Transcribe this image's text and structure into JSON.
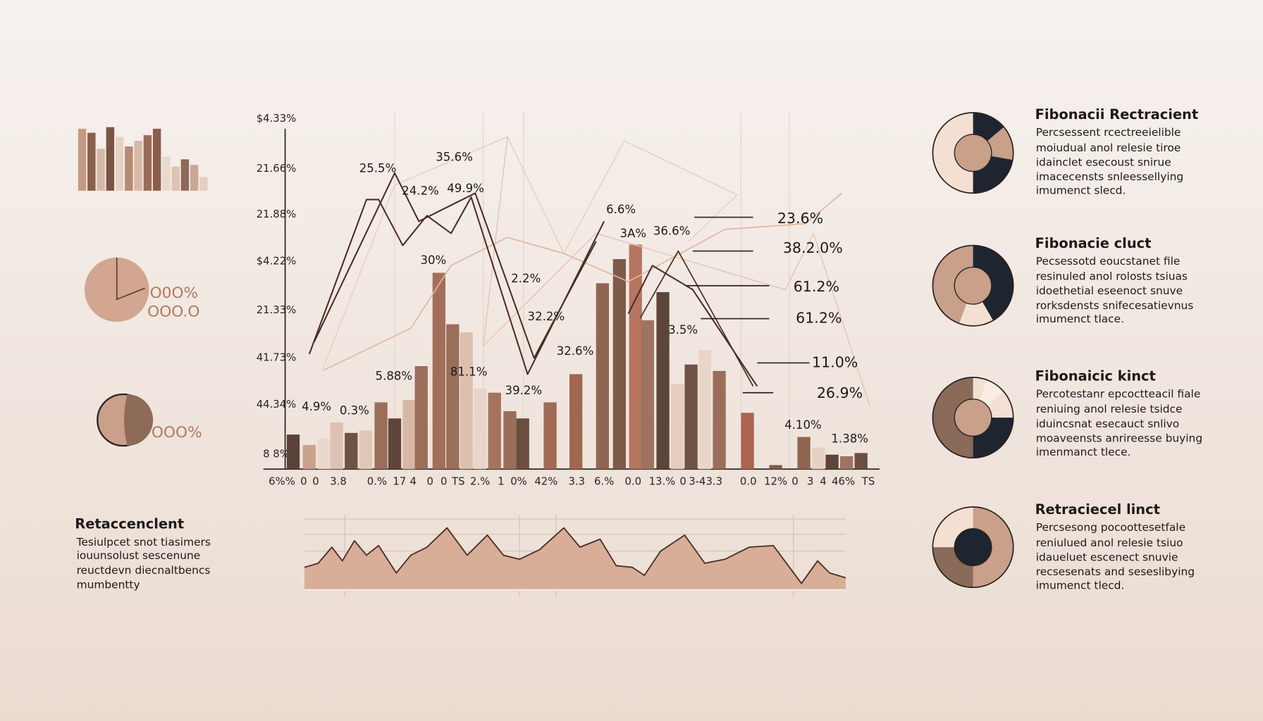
{
  "left": {
    "pie_labels": [
      "O0O%",
      "OOO.O"
    ],
    "small_pie_label": "OOO%",
    "note": {
      "title": "Retaccenclent",
      "lines": [
        "Tesiulpcet snot tiasimers",
        "iouunsolust sescenune",
        "reuctdevn diecnaltbencs",
        "mumbentty"
      ]
    }
  },
  "main_chart": {
    "y_labels": [
      "$4.33%",
      "21.66%",
      "21.88%",
      "$4.22%",
      "21.33%",
      "41.73%",
      "44.34%",
      "8 8%"
    ],
    "x_labels": [
      "6%%",
      "0",
      "0",
      "3.8",
      "0.%",
      "17",
      "4",
      "0",
      "0",
      "TS",
      "2.%",
      "1",
      "0%",
      "42%",
      "3.3",
      "6.%",
      "0.0",
      "13.%",
      "0",
      "3-43.3",
      "0.0",
      "12%",
      "0",
      "3",
      "4",
      "46%",
      "TS"
    ],
    "annotations": [
      "25.5%",
      "35.6%",
      "24.2%",
      "49.9%",
      "30%",
      "6.6%",
      "3A%",
      "36.6%",
      "2.2%",
      "32.2%",
      "3.5%",
      "32.6%",
      "5.88%",
      "81.1%",
      "39.2%",
      "4.9%",
      "0.3%",
      "4.10%",
      "1.38%"
    ],
    "levels": [
      "23.6%",
      "38.2.0%",
      "61.2%",
      "61.2%",
      "11.0%",
      "26.9%"
    ]
  },
  "panels": [
    {
      "title": "Fibonacii Rectracient",
      "lines": [
        "Percsessent rcectreeielible",
        "moiudual anol relesie tiroe",
        "idainclet esecoust snirue",
        "imacecensts snleessellying",
        "imumenct slecd."
      ]
    },
    {
      "title": "Fibonacie cluct",
      "lines": [
        "Pecsessotd eoucstanet file",
        "resinuled anol rolosts tsiuas",
        "idoethetial eseenoct snuve",
        "rorksdensts snifecesatievnus",
        "imumenct tlace."
      ]
    },
    {
      "title": "Fibonaicic kinct",
      "lines": [
        "Percotestanr epcoctteacil fiale",
        "reniuing anol relesie tsidce",
        "iduincsnat esecauct snlivo",
        "moaveensts anrireesse buying",
        "imenmanct tlece."
      ]
    },
    {
      "title": "Retraciecel linct",
      "lines": [
        "Percsesong pocoottesetfale",
        "reniulued anol relesie tsiuo",
        "idaueluet escenect snuvie",
        "recsesenats and seseslibying",
        "imumenct tlecd."
      ]
    }
  ]
}
